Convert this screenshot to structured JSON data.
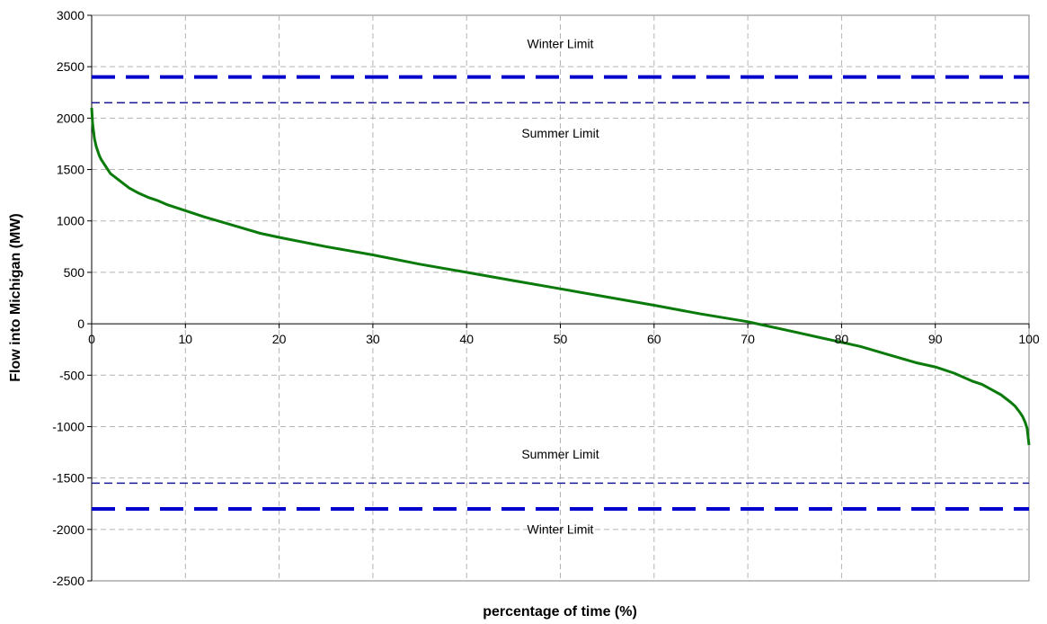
{
  "chart_data": {
    "type": "line",
    "title": "",
    "xlabel": "percentage of time (%)",
    "ylabel": "Flow into Michigan (MW)",
    "xlim": [
      0,
      100
    ],
    "ylim": [
      -2500,
      3000
    ],
    "x_ticks": [
      0,
      10,
      20,
      30,
      40,
      50,
      60,
      70,
      80,
      90,
      100
    ],
    "y_ticks": [
      3000,
      2500,
      2000,
      1500,
      1000,
      500,
      0,
      -500,
      -1000,
      -1500,
      -2000,
      -2500
    ],
    "grid": true,
    "legend": "none",
    "series": [
      {
        "color": "#0a7a0a",
        "x": [
          0,
          0.1,
          0.2,
          0.3,
          0.5,
          0.8,
          1,
          1.5,
          2,
          3,
          4,
          5,
          6,
          7,
          8,
          10,
          12,
          15,
          18,
          20,
          25,
          30,
          35,
          40,
          45,
          50,
          55,
          60,
          65,
          70,
          71,
          72,
          75,
          78,
          80,
          82,
          85,
          88,
          90,
          92,
          94,
          95,
          96,
          97,
          98,
          98.5,
          99,
          99.3,
          99.6,
          99.8,
          100
        ],
        "y": [
          2100,
          1950,
          1870,
          1800,
          1720,
          1640,
          1600,
          1530,
          1460,
          1390,
          1320,
          1270,
          1230,
          1200,
          1160,
          1100,
          1040,
          960,
          880,
          840,
          750,
          670,
          580,
          500,
          420,
          340,
          260,
          180,
          95,
          20,
          0,
          -20,
          -80,
          -140,
          -180,
          -220,
          -300,
          -380,
          -420,
          -480,
          -560,
          -590,
          -640,
          -690,
          -760,
          -800,
          -860,
          -900,
          -960,
          -1020,
          -1180
        ]
      }
    ],
    "reference_lines": [
      {
        "y": 2400,
        "color": "#0000cc",
        "style": "thick-dash"
      },
      {
        "y": 2150,
        "color": "#1a1a99",
        "style": "thin-dash"
      },
      {
        "y": -1550,
        "color": "#1a1a99",
        "style": "thin-dash"
      },
      {
        "y": -1800,
        "color": "#0000cc",
        "style": "thick-dash"
      }
    ],
    "annotations": [
      {
        "text": "Winter Limit",
        "x": 50,
        "y": 2680
      },
      {
        "text": "Summer Limit",
        "x": 50,
        "y": 1810
      },
      {
        "text": "Summer Limit",
        "x": 50,
        "y": -1310
      },
      {
        "text": "Winter Limit",
        "x": 50,
        "y": -2040
      }
    ]
  }
}
